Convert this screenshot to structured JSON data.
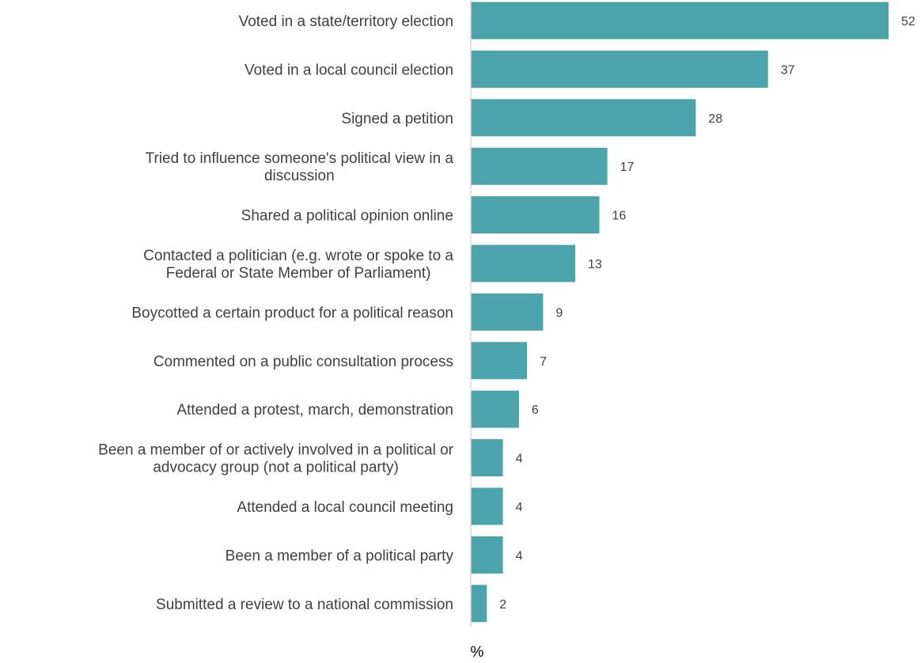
{
  "chart_data": {
    "type": "bar",
    "orientation": "horizontal",
    "categories": [
      [
        "Voted in a state/territory election"
      ],
      [
        "Voted in a local council election"
      ],
      [
        "Signed a petition"
      ],
      [
        "Tried to influence someone's political view in a",
        "discussion"
      ],
      [
        "Shared a political opinion online"
      ],
      [
        "Contacted a politician (e.g. wrote or spoke to a",
        "Federal or State Member of Parliament)"
      ],
      [
        "Boycotted a certain product for a political reason"
      ],
      [
        "Commented on a public consultation process"
      ],
      [
        "Attended a protest, march, demonstration"
      ],
      [
        "Been a member of or actively involved in a political or",
        "advocacy group (not a political party)"
      ],
      [
        "Attended a local council meeting"
      ],
      [
        "Been a member of a political party"
      ],
      [
        "Submitted a review to a national commission"
      ]
    ],
    "values": [
      52,
      37,
      28,
      17,
      16,
      13,
      9,
      7,
      6,
      4,
      4,
      4,
      2
    ],
    "data_labels": [
      "52",
      "37",
      "28",
      "17",
      "16",
      "13",
      "9",
      "7",
      "6",
      "4",
      "4",
      "4",
      "2"
    ],
    "xlabel": "%",
    "ylabel": "",
    "title": "",
    "xlim": [
      0,
      52
    ],
    "grid": false,
    "legend": "none",
    "bar_color": "#4ba3ab",
    "axis_color": "#d9d9d9"
  }
}
